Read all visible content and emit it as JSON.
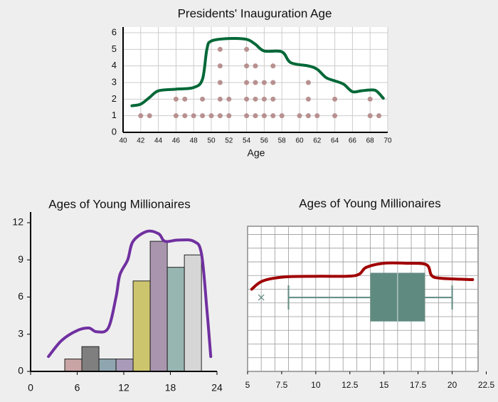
{
  "chart_data": [
    {
      "type": "dot",
      "title": "Presidents' Inauguration Age",
      "xlabel": "Age",
      "x": [
        42,
        43,
        46,
        47,
        48,
        49,
        50,
        51,
        52,
        54,
        55,
        56,
        57,
        58,
        60,
        61,
        62,
        64,
        68,
        69
      ],
      "values": [
        1,
        1,
        2,
        2,
        1,
        2,
        1,
        5,
        2,
        5,
        4,
        3,
        4,
        1,
        1,
        3,
        1,
        2,
        2,
        1
      ],
      "color": "#b89090",
      "xlim": [
        40,
        70
      ],
      "xticks": [
        40,
        42,
        44,
        46,
        48,
        50,
        52,
        54,
        56,
        58,
        60,
        62,
        64,
        66,
        68,
        70
      ],
      "ylim": [
        0,
        6
      ],
      "yticks": [
        0,
        1,
        2,
        3,
        4,
        5,
        6
      ],
      "grid": true,
      "curve": {
        "color": "#006837",
        "x": [
          41,
          42,
          43,
          44,
          46,
          48,
          49,
          49.5,
          50,
          52,
          54,
          55,
          56,
          58,
          59,
          61,
          62,
          63,
          64,
          65,
          66,
          67,
          68,
          68.7,
          69.5
        ],
        "values": [
          1.6,
          1.7,
          2.1,
          2.5,
          2.6,
          2.7,
          3.2,
          5.0,
          5.5,
          5.65,
          5.6,
          5.3,
          4.9,
          4.85,
          4.2,
          4.0,
          3.8,
          3.3,
          3.1,
          2.9,
          2.45,
          2.5,
          2.55,
          2.5,
          2.05
        ]
      }
    },
    {
      "type": "histogram",
      "title": "Ages of Young Millionaires",
      "bins": [
        4.4,
        6.6,
        8.8,
        11,
        13.2,
        15.4,
        17.6,
        19.8,
        22
      ],
      "values": [
        1,
        2,
        1,
        1,
        7.3,
        10.5,
        8.4,
        9.4
      ],
      "colors": [
        "#c9a4a4",
        "#7f7f7f",
        "#8fa6b0",
        "#a99ab9",
        "#cdc56e",
        "#a995ad",
        "#98b6b1",
        "#d6d6d6"
      ],
      "xlim": [
        0,
        24
      ],
      "xticks": [
        0,
        6,
        12,
        18,
        24
      ],
      "ylim": [
        0,
        12
      ],
      "yticks": [
        0,
        3,
        6,
        9,
        12
      ],
      "curve": {
        "color": "#7030a0",
        "x": [
          2.3,
          4,
          6,
          7.5,
          8.5,
          10,
          11,
          11.5,
          12.5,
          13.2,
          15,
          16.5,
          17.3,
          19,
          21,
          22,
          22.7,
          23.2
        ],
        "values": [
          1.2,
          2.5,
          3.3,
          3.5,
          3.2,
          3.5,
          6,
          7.8,
          9,
          10.5,
          11.3,
          11.1,
          10.5,
          10.6,
          10.5,
          9.5,
          5,
          1.2
        ]
      }
    },
    {
      "type": "box",
      "title": "Ages of Young Millionaires",
      "min": 8,
      "q1": 14,
      "median": 16,
      "q3": 18,
      "max": 20,
      "outliers": [
        6
      ],
      "color": "#5f8a80",
      "xlim": [
        5,
        21.9
      ],
      "xticks": [
        5,
        7.5,
        10,
        12.5,
        15,
        17.5,
        20,
        22.5
      ],
      "ylim": [
        0,
        10.6
      ],
      "xgrid": [
        6,
        7,
        8,
        9,
        10,
        11,
        12,
        13,
        14,
        15,
        16,
        17,
        18,
        19,
        20,
        21
      ],
      "ygrid": [
        1,
        2,
        3,
        4,
        5,
        6,
        7,
        8,
        9,
        10
      ],
      "curve": {
        "color": "#a00000",
        "x": [
          5.3,
          6.1,
          7.7,
          10.3,
          12.9,
          13.7,
          15.0,
          16.6,
          18.1,
          18.5,
          19.2,
          21.5
        ],
        "values": [
          6.0,
          6.6,
          6.9,
          6.95,
          7.0,
          7.6,
          7.9,
          7.9,
          7.8,
          7.0,
          6.8,
          6.7
        ]
      }
    }
  ]
}
